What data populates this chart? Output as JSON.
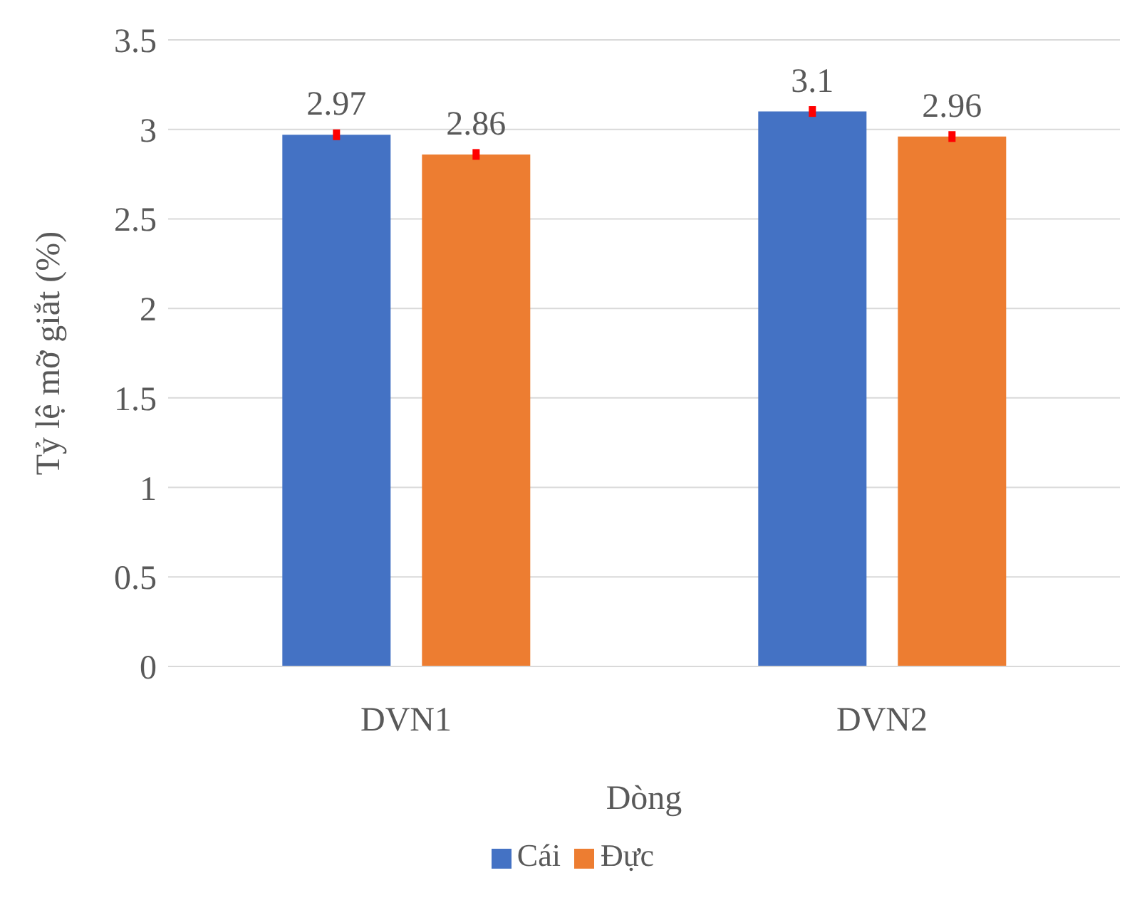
{
  "chart_data": {
    "type": "bar",
    "xlabel": "Dòng",
    "ylabel": "Tỷ lệ mỡ giắt (%)",
    "categories": [
      "DVN1",
      "DVN2"
    ],
    "series": [
      {
        "name": "Cái",
        "color": "#4472c4",
        "values": [
          2.97,
          3.1
        ],
        "errors": [
          0.03,
          0.03
        ]
      },
      {
        "name": "Đực",
        "color": "#ed7d31",
        "values": [
          2.86,
          2.96
        ],
        "errors": [
          0.03,
          0.03
        ]
      }
    ],
    "ylim": [
      0,
      3.5
    ],
    "yticks": [
      0,
      0.5,
      1,
      1.5,
      2,
      2.5,
      3,
      3.5
    ],
    "grid": "y",
    "legend": "bottom",
    "data_labels": true
  }
}
